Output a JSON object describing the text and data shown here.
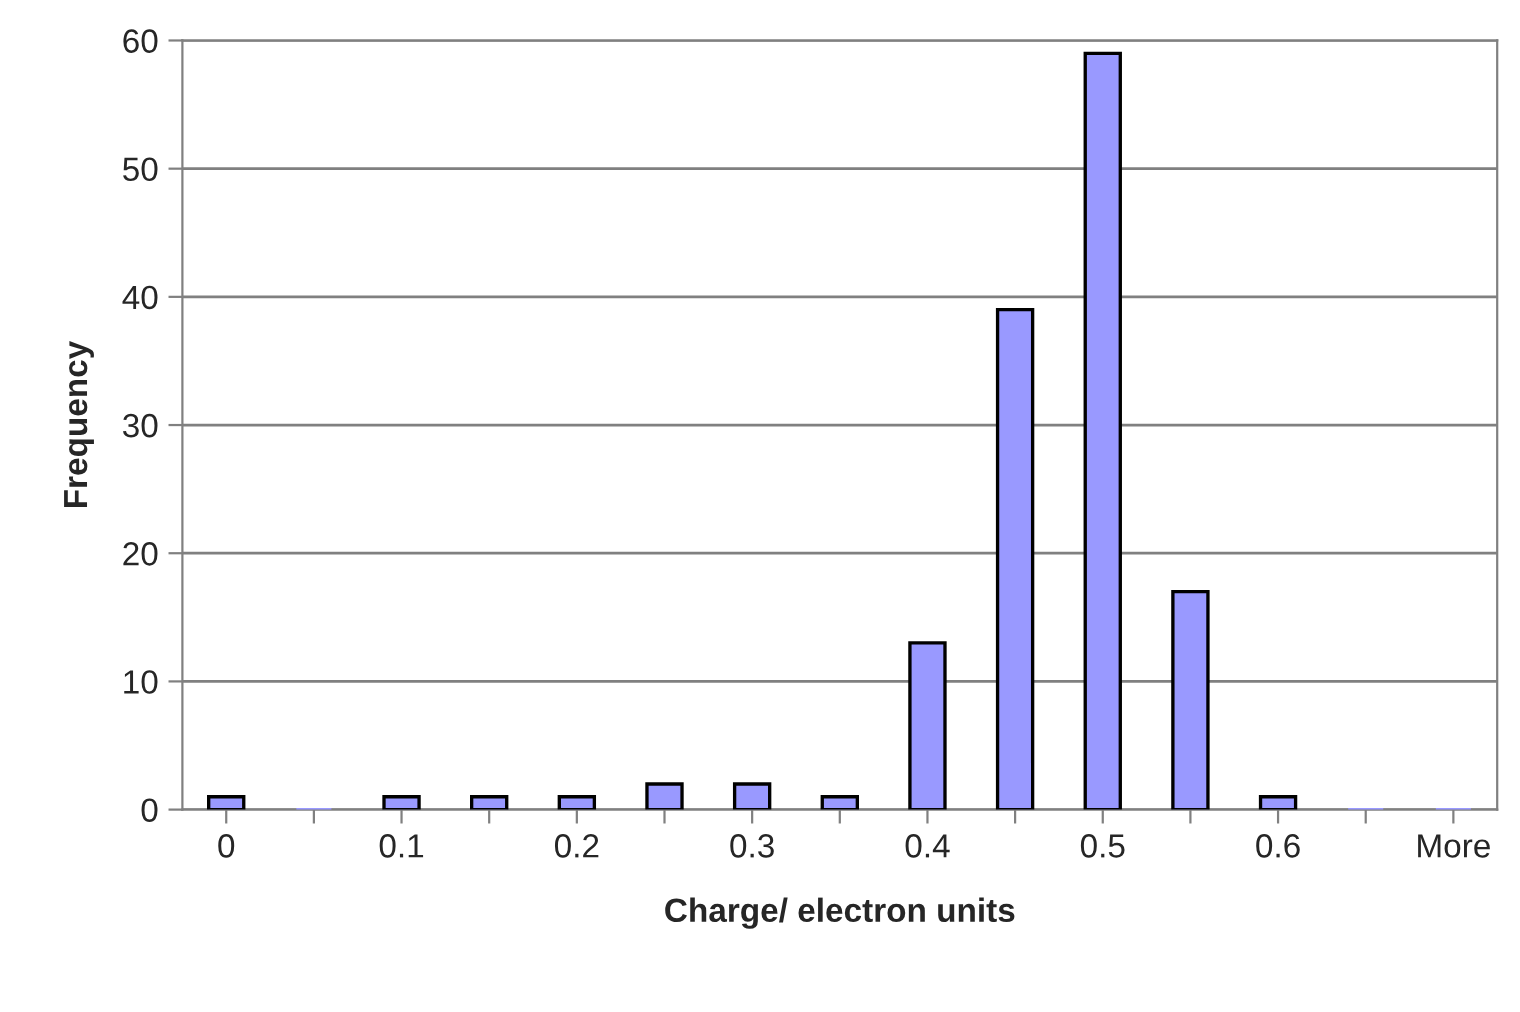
{
  "chart_data": {
    "type": "bar",
    "xlabel": "Charge/ electron units",
    "ylabel": "Frequency",
    "categories": [
      "0",
      null,
      "0.1",
      null,
      "0.2",
      null,
      "0.3",
      null,
      "0.4",
      null,
      "0.5",
      null,
      "0.6",
      null,
      "More"
    ],
    "values": [
      1,
      0,
      1,
      1,
      1,
      2,
      2,
      1,
      13,
      39,
      59,
      17,
      1,
      0,
      0
    ],
    "color": "#9999ff",
    "ylim": [
      0,
      60
    ],
    "yticks": [
      0,
      10,
      20,
      30,
      40,
      50,
      60
    ],
    "grid": "y",
    "legend": false
  }
}
